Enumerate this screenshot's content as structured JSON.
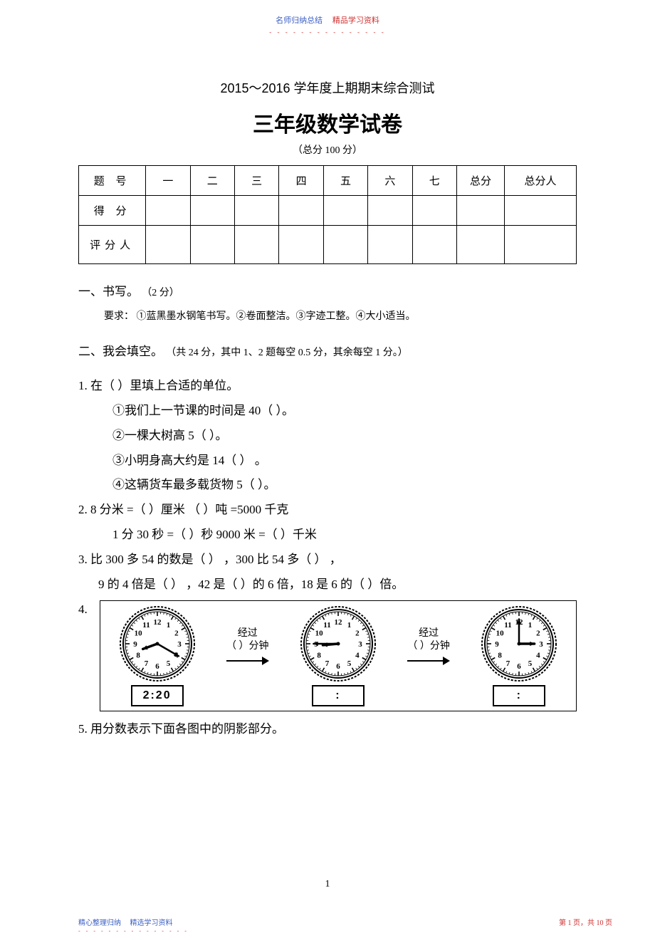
{
  "header": {
    "left": "名师归纳总结",
    "right": "精品学习资料",
    "dotted": "- - - - - - - - - - - - - - -"
  },
  "title_line": "2015～2016 学年度上期期末综合测试",
  "main_title": "三年级数学试卷",
  "sub_title": "（总分  100 分）",
  "score_table": {
    "row1": [
      "题    号",
      "一",
      "二",
      "三",
      "四",
      "五",
      "六",
      "七",
      "总分",
      "总分人"
    ],
    "row2_label": "得    分",
    "row3_label": "评分人"
  },
  "sec1": {
    "title": "一、书写。",
    "points": "（2 分）",
    "req": "要求：  ①蓝黑墨水钢笔书写。②卷面整洁。③字迹工整。④大小适当。"
  },
  "sec2": {
    "title": "二、我会填空。",
    "points": "（共  24 分，其中   1、2 题每空  0.5  分，其余每空    1 分。）"
  },
  "q1": {
    "stem": "1.   在（        ）里填上合适的单位。",
    "a": "①我们上一节课的时间是     40（         ）。",
    "b": "②一棵大树高    5（           ）。",
    "c": "③小明身高大约是     14（        ） 。",
    "d": "④这辆货车最多载货物     5（           ）。"
  },
  "q2": {
    "a": "2.  8    分米 =（           ）厘米             （             ）吨 =5000 千克",
    "b": "1 分 30 秒 =（            ）秒          9000       米 =（            ）千米"
  },
  "q3": {
    "a": "3.   比 300 多 54 的数是（            ） ，300 比 54 多（               ） ，",
    "b": "9 的 4 倍是（         ） ，42 是（        ）的 6 倍，18 是 6 的（        ）倍。"
  },
  "q4": {
    "label": "4.",
    "pass": "经过",
    "min": "（         ）分钟",
    "time1": "2:20",
    "time2": ":",
    "time3": ":"
  },
  "clocks": {
    "c1": {
      "hour_angle": 250,
      "minute_angle": 120
    },
    "c2": {
      "hour_angle": 265,
      "minute_angle": 270
    },
    "c3": {
      "hour_angle": 90,
      "minute_angle": 0
    }
  },
  "q5": "5.   用分数表示下面各图中的阴影部分。",
  "page_num": "1",
  "footer": {
    "left_a": "精心整理归纳",
    "left_b": "精选学习资料",
    "right": "第 1 页，共 10 页",
    "dotted": "- - - - - - - - - - - - - - -"
  },
  "style": {
    "clock_radius": 48,
    "clock_stroke": "#000000",
    "tick_count": 60,
    "number_fontsize": 11
  }
}
